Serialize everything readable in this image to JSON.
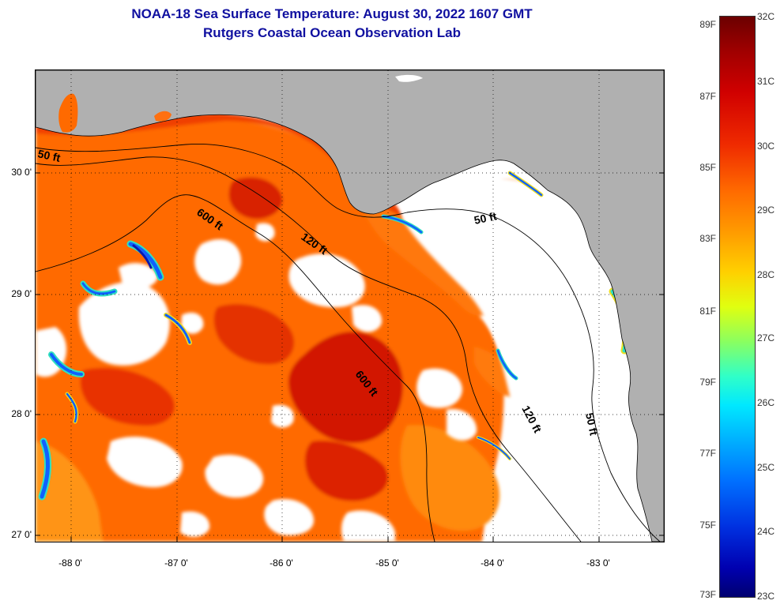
{
  "title": {
    "line1": "NOAA-18 Sea Surface Temperature:  August 30, 2022 1607 GMT",
    "line2": "Rutgers Coastal Ocean Observation Lab"
  },
  "map": {
    "latitude_labels": [
      "30 0'",
      "29 0'",
      "28 0'",
      "27 0'"
    ],
    "longitude_labels": [
      "-88 0'",
      "-87 0'",
      "-86 0'",
      "-85 0'",
      "-84 0'",
      "-83 0'"
    ],
    "contour_labels": {
      "c50_west": "50 ft",
      "c600_north": "600 ft",
      "c120_north": "120 ft",
      "c50_east": "50 ft",
      "c600_south": "600 ft",
      "c120_south": "120 ft",
      "c50_south": "50 ft"
    },
    "colors": {
      "land": "#b0b0b0",
      "cloud": "#ffffff",
      "sst_base": "#ff6a00",
      "sst_warm": "#e42a00",
      "sst_hot": "#d01800",
      "sst_cool": "#ff9a10",
      "cold_edge": "#1060ff",
      "cold_core": "#0818b0",
      "cyan_edge": "#30e0c0",
      "yellow_edge": "#f0e020"
    }
  },
  "colorbar": {
    "fahrenheit_labels": [
      "89F",
      "87F",
      "85F",
      "83F",
      "81F",
      "79F",
      "77F",
      "75F",
      "73F"
    ],
    "celsius_labels": [
      "32C",
      "31C",
      "30C",
      "29C",
      "28C",
      "27C",
      "26C",
      "25C",
      "24C",
      "23C"
    ],
    "range_c": [
      23,
      32
    ],
    "range_f": [
      73,
      89
    ]
  }
}
